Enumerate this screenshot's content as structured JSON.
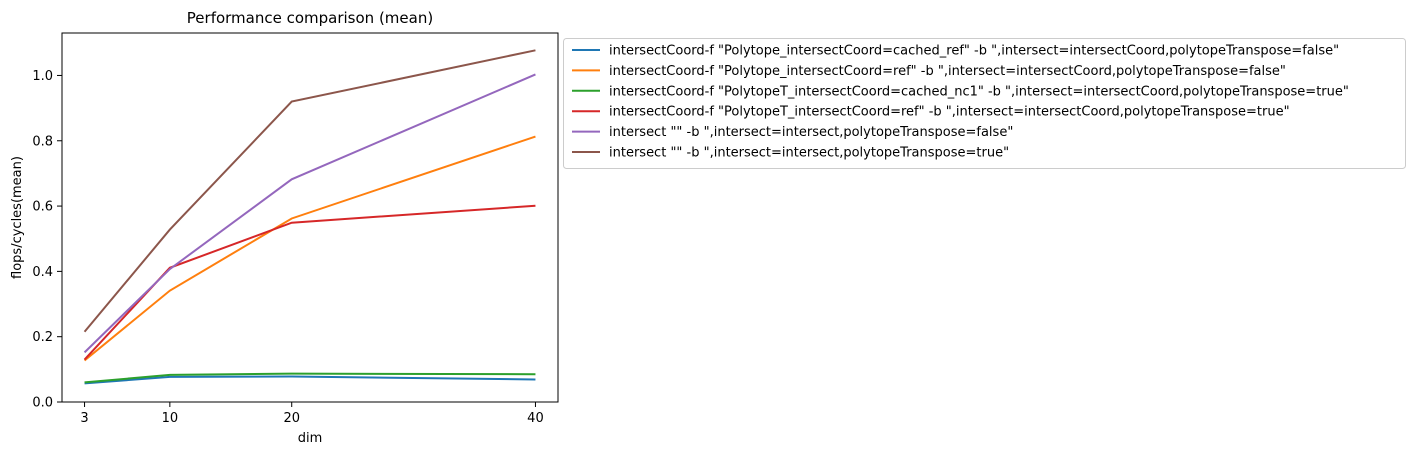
{
  "chart_data": {
    "type": "line",
    "title": "Performance comparison (mean)",
    "xlabel": "dim",
    "ylabel": "flops/cycles(mean)",
    "x": [
      3,
      10,
      20,
      40
    ],
    "xticks": [
      "3",
      "10",
      "20",
      "40"
    ],
    "yticks": [
      "0.0",
      "0.2",
      "0.4",
      "0.6",
      "0.8",
      "1.0"
    ],
    "ytick_values": [
      0.0,
      0.2,
      0.4,
      0.6,
      0.8,
      1.0
    ],
    "xlim": [
      1.15,
      41.85
    ],
    "ylim": [
      0.0,
      1.13
    ],
    "grid": false,
    "legend_position": "outside-right",
    "series": [
      {
        "name": "intersectCoord-f \"Polytope_intersectCoord=cached_ref\" -b \",intersect=intersectCoord,polytopeTranspose=false\"",
        "color": "#1f77b4",
        "values": [
          0.057,
          0.077,
          0.078,
          0.069
        ]
      },
      {
        "name": "intersectCoord-f \"Polytope_intersectCoord=ref\" -b \",intersect=intersectCoord,polytopeTranspose=false\"",
        "color": "#ff7f0e",
        "values": [
          0.127,
          0.341,
          0.562,
          0.813
        ]
      },
      {
        "name": "intersectCoord-f \"PolytopeT_intersectCoord=cached_nc1\" -b \",intersect=intersectCoord,polytopeTranspose=true\"",
        "color": "#2ca02c",
        "values": [
          0.06,
          0.083,
          0.087,
          0.085
        ]
      },
      {
        "name": "intersectCoord-f \"PolytopeT_intersectCoord=ref\" -b \",intersect=intersectCoord,polytopeTranspose=true\"",
        "color": "#d62728",
        "values": [
          0.13,
          0.411,
          0.549,
          0.601
        ]
      },
      {
        "name": "intersect \"\" -b \",intersect=intersect,polytopeTranspose=false\"",
        "color": "#9467bd",
        "values": [
          0.152,
          0.407,
          0.682,
          1.003
        ]
      },
      {
        "name": "intersect \"\" -b \",intersect=intersect,polytopeTranspose=true\"",
        "color": "#8c564b",
        "values": [
          0.215,
          0.528,
          0.92,
          1.077
        ]
      }
    ]
  }
}
